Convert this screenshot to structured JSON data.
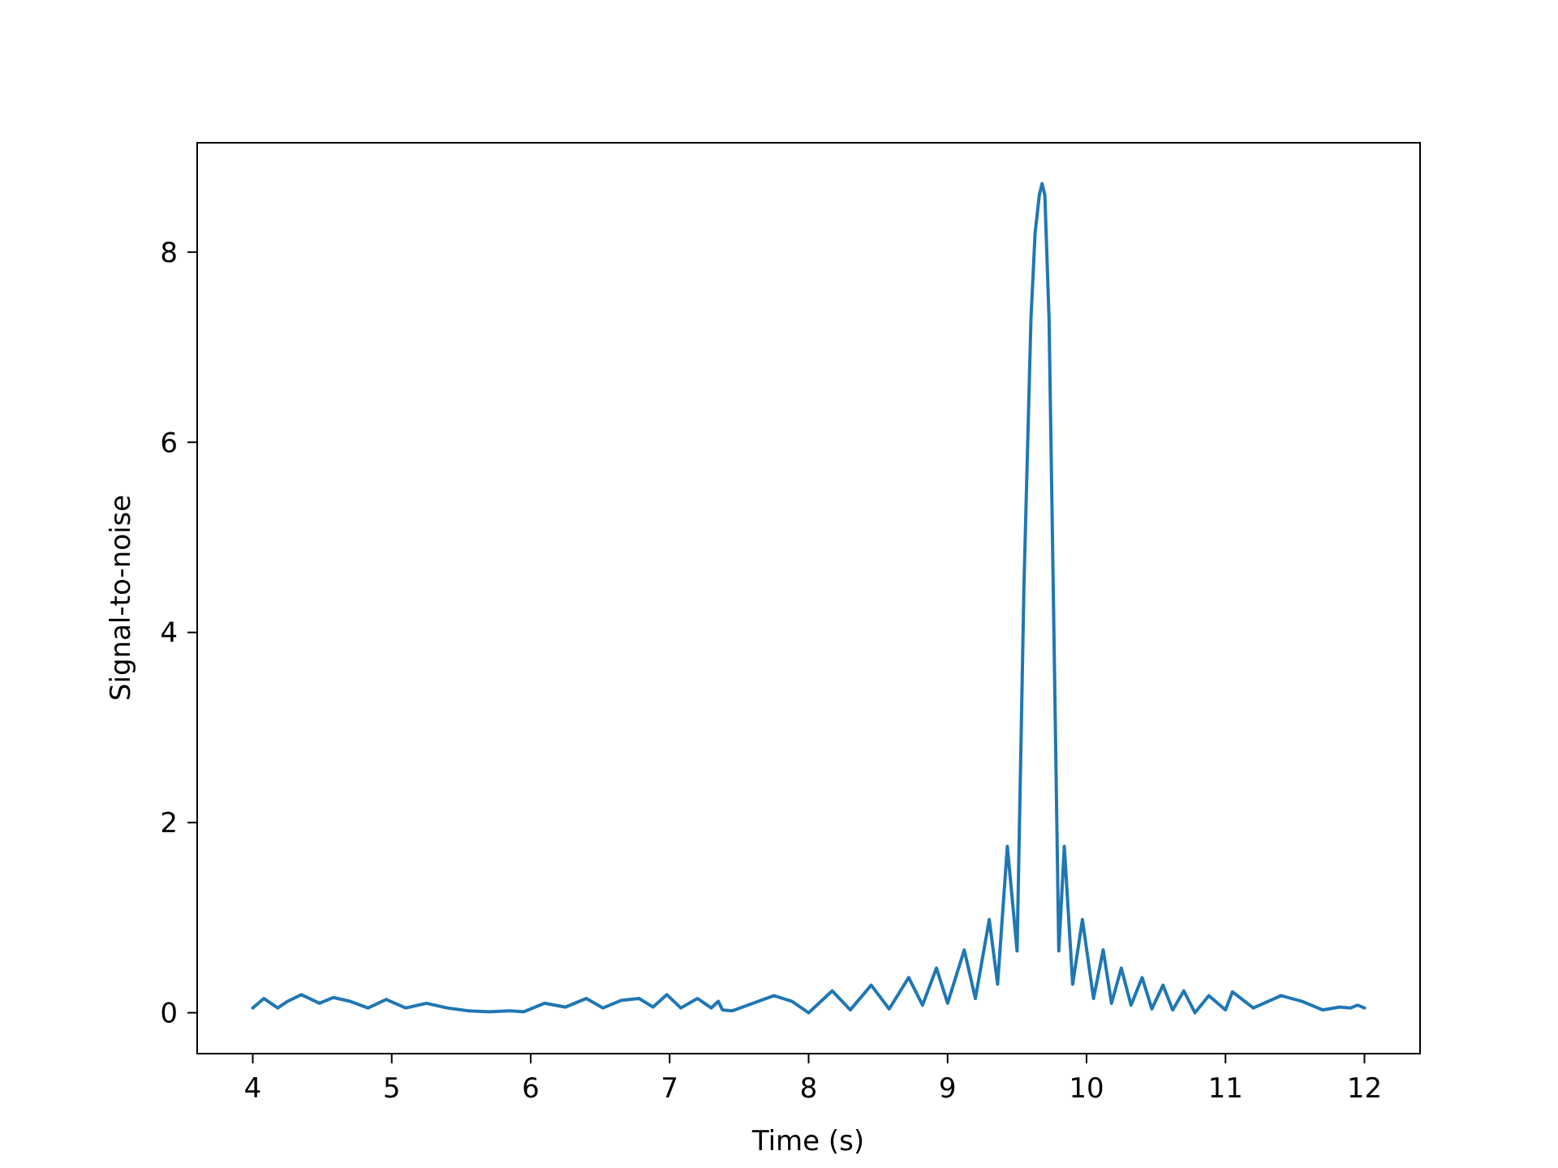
{
  "chart_data": {
    "type": "line",
    "title": "",
    "xlabel": "Time (s)",
    "ylabel": "Signal-to-noise",
    "xlim": [
      3.6,
      12.4
    ],
    "ylim": [
      -0.43,
      9.15
    ],
    "xticks": [
      4,
      5,
      6,
      7,
      8,
      9,
      10,
      11,
      12
    ],
    "xtick_labels": [
      "4",
      "5",
      "6",
      "7",
      "8",
      "9",
      "10",
      "11",
      "12"
    ],
    "yticks": [
      0,
      2,
      4,
      6,
      8
    ],
    "ytick_labels": [
      "0",
      "2",
      "4",
      "6",
      "8"
    ],
    "grid": false,
    "legend": null,
    "series": [
      {
        "color": "#1f77b4",
        "x": [
          4.0,
          4.08,
          4.18,
          4.25,
          4.35,
          4.48,
          4.58,
          4.7,
          4.83,
          4.96,
          5.1,
          5.25,
          5.4,
          5.55,
          5.7,
          5.85,
          5.95,
          6.1,
          6.25,
          6.4,
          6.52,
          6.65,
          6.78,
          6.88,
          6.98,
          7.08,
          7.2,
          7.3,
          7.35,
          7.38,
          7.45,
          7.6,
          7.75,
          7.88,
          8.0,
          8.17,
          8.3,
          8.45,
          8.58,
          8.72,
          8.82,
          8.92,
          9.0,
          9.12,
          9.2,
          9.3,
          9.36,
          9.43,
          9.5,
          9.55,
          9.6,
          9.63,
          9.66,
          9.68,
          9.7,
          9.73,
          9.76,
          9.8,
          9.84,
          9.9,
          9.97,
          10.05,
          10.12,
          10.18,
          10.25,
          10.32,
          10.4,
          10.47,
          10.55,
          10.62,
          10.7,
          10.78,
          10.88,
          11.0,
          11.05,
          11.2,
          11.4,
          11.55,
          11.7,
          11.82,
          11.9,
          11.95,
          12.0
        ],
        "values": [
          0.05,
          0.15,
          0.05,
          0.12,
          0.19,
          0.1,
          0.16,
          0.12,
          0.05,
          0.14,
          0.05,
          0.1,
          0.05,
          0.02,
          0.01,
          0.02,
          0.01,
          0.1,
          0.06,
          0.15,
          0.05,
          0.13,
          0.15,
          0.06,
          0.19,
          0.05,
          0.15,
          0.05,
          0.12,
          0.03,
          0.02,
          0.1,
          0.18,
          0.12,
          0.0,
          0.23,
          0.03,
          0.29,
          0.04,
          0.37,
          0.08,
          0.47,
          0.1,
          0.66,
          0.15,
          0.98,
          0.3,
          1.75,
          0.65,
          4.5,
          7.3,
          8.2,
          8.6,
          8.72,
          8.6,
          7.3,
          4.5,
          0.65,
          1.75,
          0.3,
          0.98,
          0.15,
          0.66,
          0.1,
          0.47,
          0.08,
          0.37,
          0.04,
          0.29,
          0.03,
          0.23,
          0.0,
          0.18,
          0.03,
          0.22,
          0.05,
          0.18,
          0.12,
          0.03,
          0.06,
          0.05,
          0.08,
          0.05
        ]
      }
    ]
  }
}
